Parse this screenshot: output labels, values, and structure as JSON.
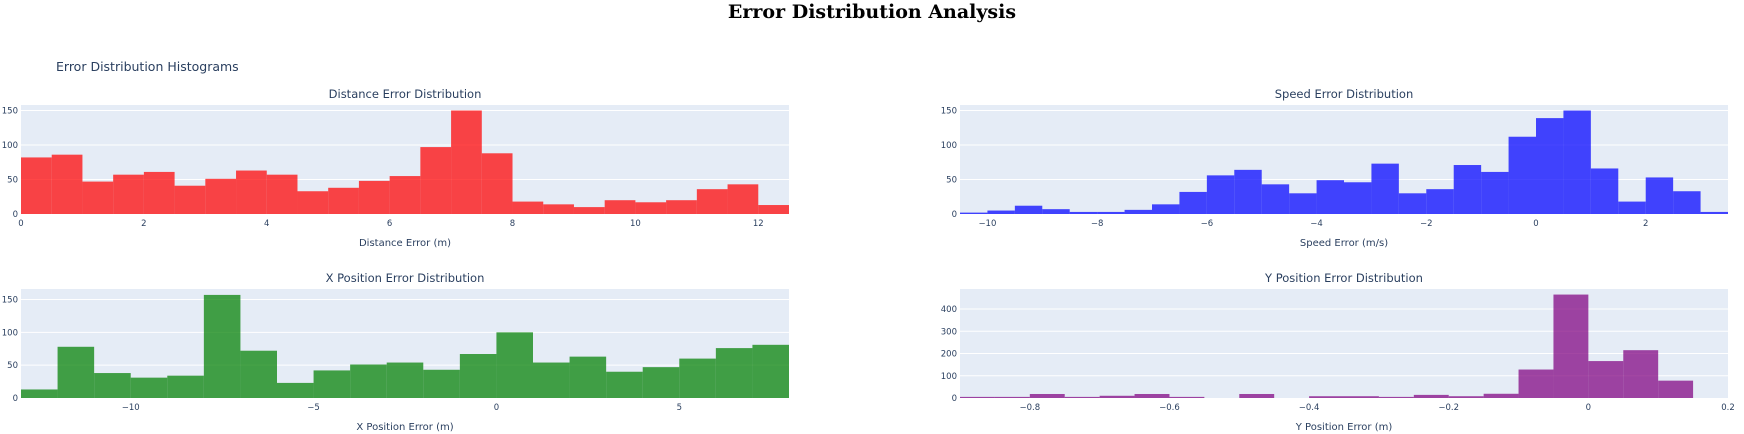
{
  "page": {
    "title": "Error Distribution Analysis",
    "section_title": "Error Distribution Histograms"
  },
  "chart_data": [
    {
      "type": "bar",
      "title": "Distance Error Distribution",
      "xlabel": "Distance Error (m)",
      "ylabel": "",
      "color": "#ff0000",
      "xlim": [
        0,
        12.5
      ],
      "ylim": [
        0,
        158
      ],
      "xticks": [
        0,
        2,
        4,
        6,
        8,
        10,
        12
      ],
      "yticks": [
        0,
        50,
        100,
        150
      ],
      "bin_start": 0,
      "bin_width": 0.5,
      "values": [
        82,
        86,
        47,
        57,
        61,
        41,
        51,
        63,
        57,
        33,
        38,
        48,
        55,
        97,
        150,
        88,
        18,
        14,
        10,
        20,
        17,
        20,
        36,
        43,
        13
      ]
    },
    {
      "type": "bar",
      "title": "Speed Error Distribution",
      "xlabel": "Speed Error (m/s)",
      "ylabel": "",
      "color": "#0000ff",
      "xlim": [
        -10.5,
        3.5
      ],
      "ylim": [
        0,
        158
      ],
      "xticks": [
        -10,
        -8,
        -6,
        -4,
        -2,
        0,
        2
      ],
      "yticks": [
        0,
        50,
        100,
        150
      ],
      "bin_start": -10.5,
      "bin_width": 0.5,
      "values": [
        2,
        5,
        12,
        7,
        3,
        3,
        6,
        14,
        32,
        56,
        64,
        43,
        30,
        49,
        46,
        73,
        30,
        36,
        71,
        61,
        112,
        139,
        150,
        66,
        18,
        53,
        33,
        3
      ]
    },
    {
      "type": "bar",
      "title": "X Position Error Distribution",
      "xlabel": "X Position Error (m)",
      "ylabel": "",
      "color": "#008000",
      "xlim": [
        -13,
        8
      ],
      "ylim": [
        0,
        166
      ],
      "xticks": [
        -10,
        -5,
        0,
        5
      ],
      "yticks": [
        0,
        50,
        100,
        150
      ],
      "bin_start": -13,
      "bin_width": 1,
      "values": [
        13,
        78,
        38,
        31,
        34,
        157,
        72,
        23,
        42,
        51,
        54,
        43,
        67,
        100,
        54,
        63,
        40,
        47,
        60,
        76,
        81
      ]
    },
    {
      "type": "bar",
      "title": "Y Position Error Distribution",
      "xlabel": "Y Position Error (m)",
      "ylabel": "",
      "color": "#800080",
      "xlim": [
        -0.9,
        0.2
      ],
      "ylim": [
        0,
        490
      ],
      "xticks": [
        -0.8,
        -0.6,
        -0.4,
        -0.2,
        0,
        0.2
      ],
      "xtick_labels": [
        "−0.8",
        "−0.6",
        "−0.4",
        "−0.2",
        "0",
        "0.2"
      ],
      "yticks": [
        0,
        100,
        200,
        300,
        400
      ],
      "bin_start": -0.9,
      "bin_width": 0.05,
      "values": [
        5,
        5,
        18,
        5,
        10,
        18,
        5,
        0,
        18,
        0,
        8,
        8,
        5,
        14,
        8,
        19,
        128,
        465,
        166,
        215,
        78,
        0
      ]
    }
  ]
}
